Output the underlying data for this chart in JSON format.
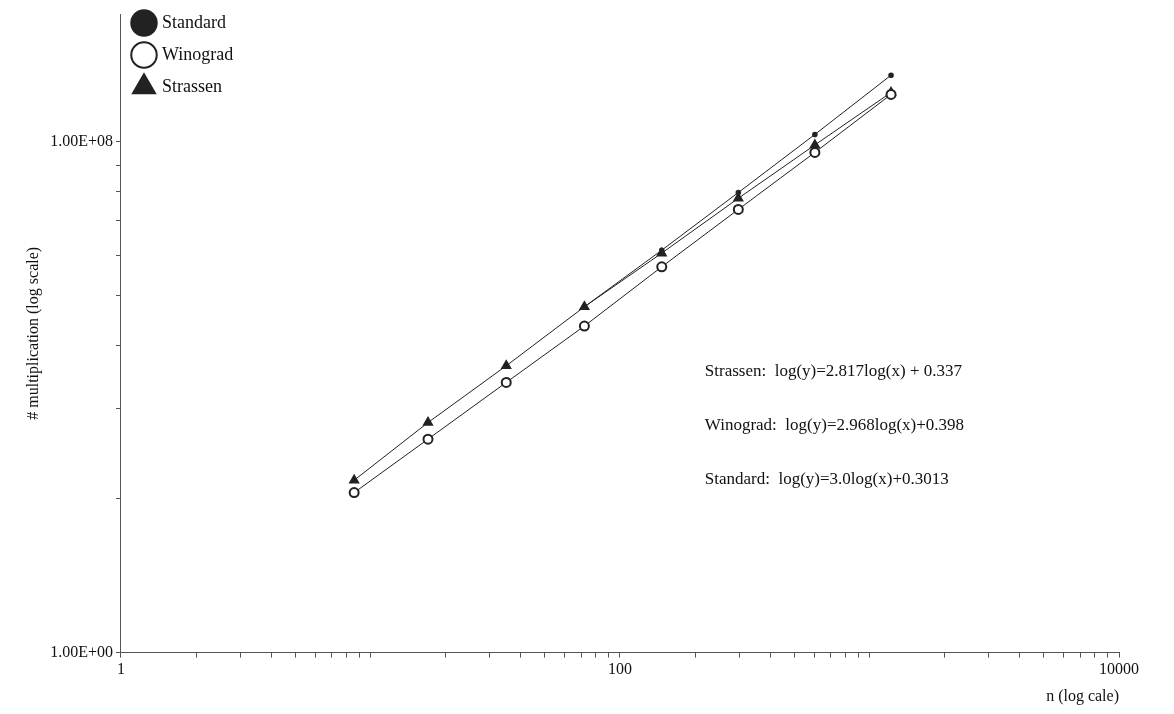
{
  "chart_data": {
    "type": "line",
    "xlabel": "n (log cale)",
    "ylabel": "# multiplication (log scale)",
    "x": [
      8.6,
      17,
      35,
      72,
      147,
      298,
      604,
      1220
    ],
    "series": [
      {
        "name": "Standard",
        "color": "#222222",
        "marker": "circle",
        "values": [
          null,
          null,
          null,
          260000.0,
          2000000.0,
          16000000.0,
          130000000.0,
          1100000000.0
        ]
      },
      {
        "name": "Winograd",
        "color": "#222222",
        "marker": "circle",
        "values": [
          320.0,
          2200.0,
          17000.0,
          130000.0,
          1100000.0,
          8700000.0,
          68000000.0,
          550000000.0
        ]
      },
      {
        "name": "Strassen",
        "color": "#222222",
        "marker": "triangle",
        "values": [
          500.0,
          4000.0,
          31000.0,
          260000.0,
          1800000.0,
          13000000.0,
          89000000.0,
          590000000.0
        ]
      }
    ],
    "log": "xy",
    "xlim": [
      1,
      10000
    ],
    "ylim": [
      1,
      10000000000.0
    ],
    "xticks": [
      1,
      {
        "value": 2,
        "label": null
      },
      {
        "value": 3,
        "label": null
      },
      {
        "value": 4,
        "label": null
      },
      {
        "value": 5,
        "label": null
      },
      {
        "value": 6,
        "label": null
      },
      {
        "value": 7,
        "label": null
      },
      {
        "value": 8,
        "label": null
      },
      {
        "value": 9,
        "label": null
      },
      {
        "value": 10,
        "label": null
      },
      {
        "value": 20,
        "label": null
      },
      {
        "value": 30,
        "label": null
      },
      {
        "value": 40,
        "label": null
      },
      {
        "value": 50,
        "label": null
      },
      {
        "value": 60,
        "label": null
      },
      {
        "value": 70,
        "label": null
      },
      {
        "value": 80,
        "label": null
      },
      {
        "value": 90,
        "label": null
      },
      100,
      {
        "value": 200,
        "label": null
      },
      {
        "value": 300,
        "label": null
      },
      {
        "value": 400,
        "label": null
      },
      {
        "value": 500,
        "label": null
      },
      {
        "value": 600,
        "label": null
      },
      {
        "value": 700,
        "label": null
      },
      {
        "value": 800,
        "label": null
      },
      {
        "value": 900,
        "label": null
      },
      {
        "value": 1000,
        "label": null
      },
      {
        "value": 2000,
        "label": null
      },
      {
        "value": 3000,
        "label": null
      },
      {
        "value": 4000,
        "label": null
      },
      {
        "value": 5000,
        "label": null
      },
      {
        "value": 6000,
        "label": null
      },
      {
        "value": 7000,
        "label": null
      },
      {
        "value": 8000,
        "label": null
      },
      {
        "value": 9000,
        "label": null
      },
      10000
    ],
    "yticks": [
      {
        "value": 1,
        "label": "1.00E+00"
      },
      {
        "value": 256,
        "label": null
      },
      {
        "value": 6561,
        "label": null
      },
      {
        "value": 65536,
        "label": null
      },
      {
        "value": 390625,
        "label": null
      },
      {
        "value": 1679616,
        "label": null
      },
      {
        "value": 5764801,
        "label": null
      },
      {
        "value": 16777216,
        "label": null
      },
      {
        "value": 43046721,
        "label": null
      },
      {
        "value": 100000000,
        "label": "1.00E+08"
      }
    ],
    "grid": false,
    "legend": "top left",
    "annotations": [
      "Strassen:  log(y)=2.817log(x) + 0.337",
      "Winograd:  log(y)=2.968log(x)+0.398",
      "Standard:  log(y)=3.0log(x)+0.3013"
    ]
  }
}
